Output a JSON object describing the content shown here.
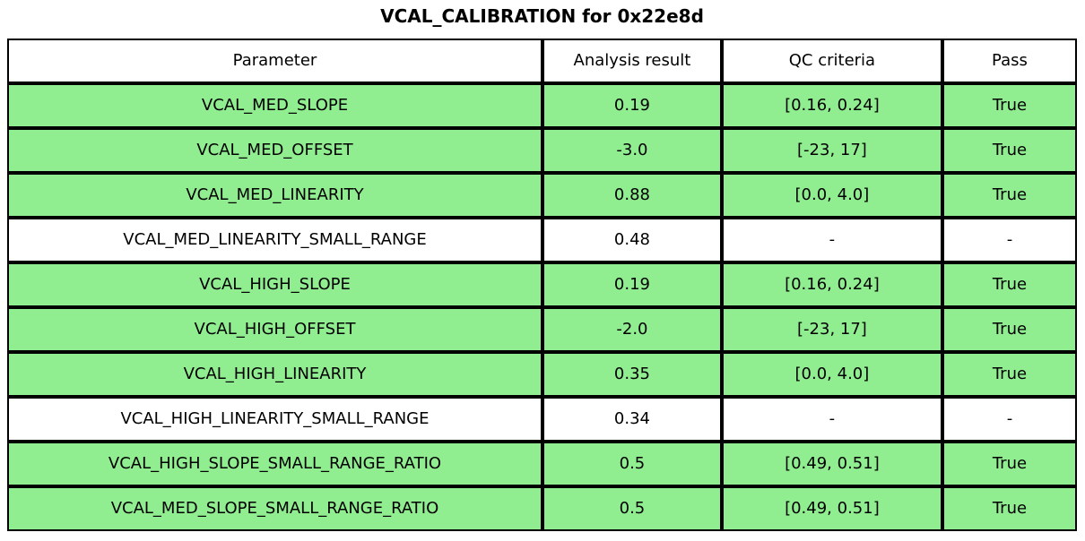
{
  "chart_data": {
    "type": "table",
    "title": "VCAL_CALIBRATION for 0x22e8d",
    "columns": [
      "Parameter",
      "Analysis result",
      "QC criteria",
      "Pass"
    ],
    "rows": [
      [
        "VCAL_MED_SLOPE",
        "0.19",
        "[0.16, 0.24]",
        "True"
      ],
      [
        "VCAL_MED_OFFSET",
        "-3.0",
        "[-23, 17]",
        "True"
      ],
      [
        "VCAL_MED_LINEARITY",
        "0.88",
        "[0.0, 4.0]",
        "True"
      ],
      [
        "VCAL_MED_LINEARITY_SMALL_RANGE",
        "0.48",
        "-",
        "-"
      ],
      [
        "VCAL_HIGH_SLOPE",
        "0.19",
        "[0.16, 0.24]",
        "True"
      ],
      [
        "VCAL_HIGH_OFFSET",
        "-2.0",
        "[-23, 17]",
        "True"
      ],
      [
        "VCAL_HIGH_LINEARITY",
        "0.35",
        "[0.0, 4.0]",
        "True"
      ],
      [
        "VCAL_HIGH_LINEARITY_SMALL_RANGE",
        "0.34",
        "-",
        "-"
      ],
      [
        "VCAL_HIGH_SLOPE_SMALL_RANGE_RATIO",
        "0.5",
        "[0.49, 0.51]",
        "True"
      ],
      [
        "VCAL_MED_SLOPE_SMALL_RANGE_RATIO",
        "0.5",
        "[0.49, 0.51]",
        "True"
      ]
    ],
    "row_highlight": [
      true,
      true,
      true,
      false,
      true,
      true,
      true,
      false,
      true,
      true
    ],
    "colors": {
      "pass_row_bg": "#90EE90",
      "neutral_row_bg": "#FFFFFF",
      "header_bg": "#FFFFFF",
      "border": "#000000",
      "text": "#000000",
      "background": "#FFFFFF"
    },
    "layout": {
      "header_position": "top",
      "grid": true,
      "text_align": "center"
    }
  }
}
